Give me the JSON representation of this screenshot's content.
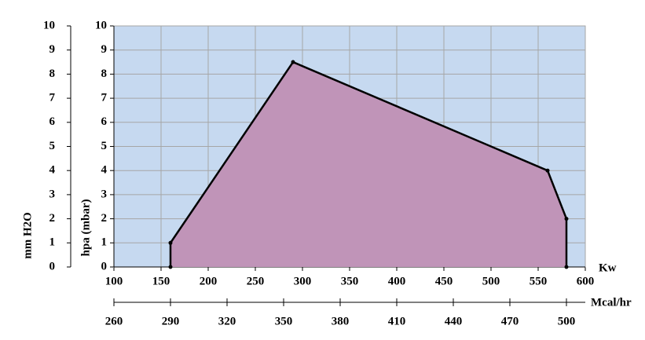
{
  "chart_data": {
    "type": "area",
    "x_label": "Kw",
    "x2_label": "Mcal/hr",
    "y_label": "hpa (mbar)",
    "y2_label": "mm H2O",
    "xlim": [
      100,
      600
    ],
    "xticks": [
      100,
      150,
      200,
      250,
      300,
      350,
      400,
      450,
      500,
      550,
      600
    ],
    "x2lim": [
      260,
      510
    ],
    "x2ticks": [
      260,
      290,
      320,
      350,
      380,
      410,
      440,
      470,
      500
    ],
    "ylim": [
      0,
      10
    ],
    "yticks": [
      0,
      1,
      2,
      3,
      4,
      5,
      6,
      7,
      8,
      9,
      10
    ],
    "y2lim": [
      0,
      10
    ],
    "y2ticks": [
      0,
      1,
      2,
      3,
      4,
      5,
      6,
      7,
      8,
      9,
      10
    ],
    "grid": true,
    "background": "#c6d9f0",
    "series": [
      {
        "color": "#c094b8",
        "x": [
          160,
          160,
          290,
          560,
          580,
          580
        ],
        "values": [
          0,
          1,
          8.5,
          4,
          2,
          0
        ]
      }
    ]
  }
}
